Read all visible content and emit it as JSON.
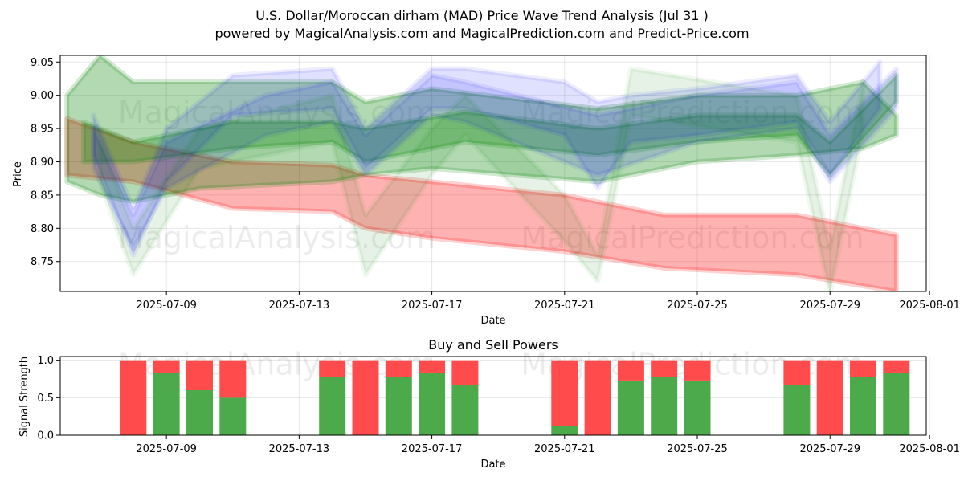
{
  "chart_data": [
    {
      "type": "area",
      "title": "U.S. Dollar/Moroccan dirham (MAD) Price Wave Trend Analysis (Jul 31 )",
      "subtitle": "powered by MagicalAnalysis.com and MagicalPrediction.com and Predict-Price.com",
      "xlabel": "Date",
      "ylabel": "Price",
      "x_ticks": [
        "2025-07-09",
        "2025-07-13",
        "2025-07-17",
        "2025-07-21",
        "2025-07-25",
        "2025-07-29",
        "2025-08-01"
      ],
      "y_ticks": [
        "8.75",
        "8.80",
        "8.85",
        "8.90",
        "8.95",
        "9.00",
        "9.05"
      ],
      "xlim": [
        "2025-07-05.8",
        "2025-07-31.9"
      ],
      "ylim": [
        8.705,
        9.06
      ],
      "grid": true,
      "bands": [
        {
          "color": "#ff0000",
          "opacity": 0.3,
          "x": [
            "2025-07-06",
            "2025-07-08",
            "2025-07-11",
            "2025-07-14",
            "2025-07-15",
            "2025-07-17",
            "2025-07-21",
            "2025-07-24",
            "2025-07-28",
            "2025-07-31"
          ],
          "upper": [
            8.965,
            8.93,
            8.9,
            8.895,
            8.88,
            8.87,
            8.85,
            8.82,
            8.82,
            8.79
          ],
          "lower": [
            8.88,
            8.87,
            8.83,
            8.825,
            8.8,
            8.785,
            8.765,
            8.74,
            8.73,
            8.705
          ]
        },
        {
          "color": "#008000",
          "opacity": 0.3,
          "x": [
            "2025-07-06",
            "2025-07-07",
            "2025-07-08",
            "2025-07-10",
            "2025-07-14",
            "2025-07-15",
            "2025-07-17",
            "2025-07-22",
            "2025-07-25",
            "2025-07-28",
            "2025-07-30",
            "2025-07-31"
          ],
          "upper": [
            9.0,
            9.06,
            9.02,
            9.02,
            9.02,
            8.99,
            9.01,
            8.98,
            9.0,
            9.0,
            9.02,
            8.97
          ],
          "lower": [
            8.87,
            8.85,
            8.84,
            8.86,
            8.87,
            8.88,
            8.89,
            8.87,
            8.9,
            8.91,
            8.92,
            8.94
          ]
        },
        {
          "color": "#008000",
          "opacity": 0.28,
          "x": [
            "2025-07-06.5",
            "2025-07-08",
            "2025-07-11",
            "2025-07-14",
            "2025-07-15",
            "2025-07-18",
            "2025-07-22",
            "2025-07-25",
            "2025-07-28",
            "2025-07-29",
            "2025-07-31"
          ],
          "upper": [
            8.96,
            8.93,
            8.96,
            8.96,
            8.95,
            8.975,
            8.95,
            8.97,
            8.97,
            8.93,
            9.03
          ],
          "lower": [
            8.9,
            8.9,
            8.92,
            8.93,
            8.9,
            8.93,
            8.91,
            8.93,
            8.94,
            8.88,
            8.99
          ]
        },
        {
          "color": "#0000ff",
          "opacity": 0.12,
          "x": [
            "2025-07-06.8",
            "2025-07-08",
            "2025-07-09",
            "2025-07-11",
            "2025-07-14",
            "2025-07-15",
            "2025-07-17",
            "2025-07-18",
            "2025-07-21",
            "2025-07-22",
            "2025-07-23",
            "2025-07-25",
            "2025-07-28",
            "2025-07-29",
            "2025-07-30.5"
          ],
          "upper": [
            8.97,
            8.83,
            8.95,
            9.03,
            9.04,
            8.95,
            9.04,
            9.04,
            9.02,
            8.99,
            9.0,
            9.01,
            9.03,
            8.96,
            9.05
          ],
          "lower": [
            8.91,
            8.76,
            8.87,
            8.97,
            8.98,
            8.89,
            8.98,
            8.98,
            8.94,
            8.86,
            8.93,
            8.94,
            8.96,
            8.88,
            8.98
          ]
        },
        {
          "color": "#0000ff",
          "opacity": 0.12,
          "x": [
            "2025-07-06.8",
            "2025-07-08",
            "2025-07-09",
            "2025-07-12",
            "2025-07-14",
            "2025-07-15",
            "2025-07-17",
            "2025-07-18",
            "2025-07-22",
            "2025-07-25",
            "2025-07-28",
            "2025-07-29",
            "2025-07-31"
          ],
          "upper": [
            8.95,
            8.82,
            8.93,
            9.0,
            9.02,
            8.94,
            9.03,
            9.02,
            8.97,
            9.0,
            9.02,
            8.94,
            9.04
          ],
          "lower": [
            8.89,
            8.77,
            8.86,
            8.94,
            8.96,
            8.88,
            8.97,
            8.96,
            8.88,
            8.93,
            8.95,
            8.87,
            8.98
          ]
        },
        {
          "color": "#008000",
          "opacity": 0.1,
          "x": [
            "2025-07-07",
            "2025-07-08",
            "2025-07-10",
            "2025-07-14",
            "2025-07-15",
            "2025-07-17",
            "2025-07-18",
            "2025-07-21",
            "2025-07-22",
            "2025-07-23",
            "2025-07-28",
            "2025-07-29",
            "2025-07-30"
          ],
          "upper": [
            8.93,
            8.8,
            8.95,
            9.0,
            8.82,
            8.95,
            9.0,
            8.85,
            8.76,
            9.04,
            9.0,
            8.77,
            9.02
          ],
          "lower": [
            8.87,
            8.73,
            8.89,
            8.93,
            8.73,
            8.88,
            8.94,
            8.78,
            8.72,
            8.97,
            8.93,
            8.7,
            8.95
          ]
        }
      ],
      "watermarks": [
        "MagicalAnalysis.com",
        "MagicalPrediction.com"
      ]
    },
    {
      "type": "bar",
      "title": "Buy and Sell Powers",
      "xlabel": "Date",
      "ylabel": "Signal Strength",
      "x_ticks": [
        "2025-07-09",
        "2025-07-13",
        "2025-07-17",
        "2025-07-21",
        "2025-07-25",
        "2025-07-29",
        "2025-08-01"
      ],
      "y_ticks": [
        "0.0",
        "0.5",
        "1.0"
      ],
      "xlim": [
        "2025-07-05.8",
        "2025-07-31.9"
      ],
      "ylim": [
        0,
        1.05
      ],
      "grid": true,
      "series": [
        {
          "name": "",
          "color": "#4caa4a",
          "values": [
            0.0,
            0.83,
            0.6,
            0.5,
            0.78,
            0.0,
            0.78,
            0.83,
            0.67,
            0.12,
            0.0,
            0.73,
            0.78,
            0.73,
            0.67,
            0.0,
            0.78,
            0.83
          ]
        },
        {
          "name": "",
          "color": "#ff4b4b",
          "values": [
            1.0,
            0.17,
            0.4,
            0.5,
            0.22,
            1.0,
            0.22,
            0.17,
            0.33,
            0.88,
            1.0,
            0.27,
            0.22,
            0.27,
            0.33,
            1.0,
            0.22,
            0.17
          ]
        }
      ],
      "x": [
        "2025-07-08",
        "2025-07-09",
        "2025-07-10",
        "2025-07-11",
        "2025-07-14",
        "2025-07-15",
        "2025-07-16",
        "2025-07-17",
        "2025-07-18",
        "2025-07-21",
        "2025-07-22",
        "2025-07-23",
        "2025-07-24",
        "2025-07-25",
        "2025-07-28",
        "2025-07-29",
        "2025-07-30",
        "2025-07-31"
      ],
      "watermarks": [
        "MagicalAnalysis.com",
        "MagicalPrediction.com"
      ]
    }
  ]
}
